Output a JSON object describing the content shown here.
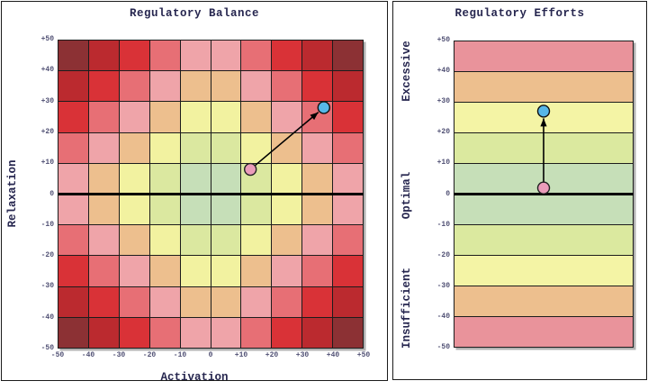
{
  "figure": {
    "background": "#ffffff",
    "panel_border_color": "#1b1b1b",
    "grid_line_color": "#1c1c1c",
    "zero_line_color": "#000000",
    "title_color": "#26264f",
    "tick_color": "#4f4f73",
    "shadow_color": "rgba(0,0,0,0.30)"
  },
  "chart_data": [
    {
      "type": "heatmap",
      "title": "Regulatory Balance",
      "xlabel": "Activation",
      "ylabel": "Relaxation",
      "xlim": [
        -50,
        50
      ],
      "ylim": [
        -50,
        50
      ],
      "grid": "on",
      "tick_values": [
        50,
        40,
        30,
        20,
        10,
        0,
        -10,
        -20,
        -30,
        -40,
        -50
      ],
      "ytick_labels": [
        "+50",
        "+40",
        "+30",
        "+20",
        "+10",
        "0",
        "-10",
        "-20",
        "-30",
        "-40",
        "-50"
      ],
      "xtick_labels": [
        "-50",
        "-40",
        "-30",
        "-20",
        "-10",
        "0",
        "+10",
        "+20",
        "+30",
        "+40",
        "+50"
      ],
      "rows": 10,
      "cols": 10,
      "zone_palette": [
        "#c6dfb8",
        "#dbe8a0",
        "#f2f2a0",
        "#edbf8e",
        "#efa4a9",
        "#e76f75",
        "#d93237",
        "#bb2a2f",
        "#8c3134"
      ],
      "zone_rule": "ring index = |col-4.5| + |row-4.5|, ring 1 (center, green) to ring 9 (corners, maroon)",
      "zone_matrix": [
        [
          9,
          8,
          7,
          6,
          5,
          5,
          6,
          7,
          8,
          9
        ],
        [
          8,
          7,
          6,
          5,
          4,
          4,
          5,
          6,
          7,
          8
        ],
        [
          7,
          6,
          5,
          4,
          3,
          3,
          4,
          5,
          6,
          7
        ],
        [
          6,
          5,
          4,
          3,
          2,
          2,
          3,
          4,
          5,
          6
        ],
        [
          5,
          4,
          3,
          2,
          1,
          1,
          2,
          3,
          4,
          5
        ],
        [
          5,
          4,
          3,
          2,
          1,
          1,
          2,
          3,
          4,
          5
        ],
        [
          6,
          5,
          4,
          3,
          2,
          2,
          3,
          4,
          5,
          6
        ],
        [
          7,
          6,
          5,
          4,
          3,
          3,
          4,
          5,
          6,
          7
        ],
        [
          8,
          7,
          6,
          5,
          4,
          4,
          5,
          6,
          7,
          8
        ],
        [
          9,
          8,
          7,
          6,
          5,
          5,
          6,
          7,
          8,
          9
        ]
      ],
      "zero_line_y": 0,
      "points": [
        {
          "id": "previous",
          "x": 13,
          "y": 8,
          "fill": "#ea9cba",
          "stroke": "#222222"
        },
        {
          "id": "current",
          "x": 37,
          "y": 28,
          "fill": "#57b7e8",
          "stroke": "#111111"
        }
      ],
      "arrow": {
        "from": "previous",
        "to": "current",
        "color": "#000000"
      }
    },
    {
      "type": "zones",
      "title": "Regulatory Efforts",
      "ylim": [
        -50,
        50
      ],
      "tick_values": [
        50,
        40,
        30,
        20,
        10,
        0,
        -10,
        -20,
        -30,
        -40,
        -50
      ],
      "ytick_labels": [
        "+50",
        "+40",
        "+30",
        "+20",
        "+10",
        "0",
        "-10",
        "-20",
        "-30",
        "-40",
        "-50"
      ],
      "zone_labels": [
        {
          "label": "Excessive",
          "at": 40
        },
        {
          "label": "Optimal",
          "at": 0
        },
        {
          "label": "Insufficient",
          "at": -40
        }
      ],
      "bands": [
        {
          "from": 40,
          "to": 50,
          "color": "#e9939b"
        },
        {
          "from": 30,
          "to": 40,
          "color": "#edbf8e"
        },
        {
          "from": 20,
          "to": 30,
          "color": "#f4f4a5"
        },
        {
          "from": 10,
          "to": 20,
          "color": "#dbe99f"
        },
        {
          "from": 0,
          "to": 10,
          "color": "#c6dfb8"
        },
        {
          "from": -10,
          "to": 0,
          "color": "#c6dfb8"
        },
        {
          "from": -20,
          "to": -10,
          "color": "#dbe99f"
        },
        {
          "from": -30,
          "to": -20,
          "color": "#f4f4a5"
        },
        {
          "from": -40,
          "to": -30,
          "color": "#edbf8e"
        },
        {
          "from": -50,
          "to": -40,
          "color": "#e9939b"
        }
      ],
      "zero_line_y": 0,
      "points": [
        {
          "id": "previous",
          "y": 2,
          "fill": "#ea9cba",
          "stroke": "#222222"
        },
        {
          "id": "current",
          "y": 27,
          "fill": "#57b7e8",
          "stroke": "#111111"
        }
      ],
      "connector": {
        "from": "previous",
        "to": "current",
        "color": "#000000",
        "arrowhead": "toward-current"
      }
    }
  ]
}
